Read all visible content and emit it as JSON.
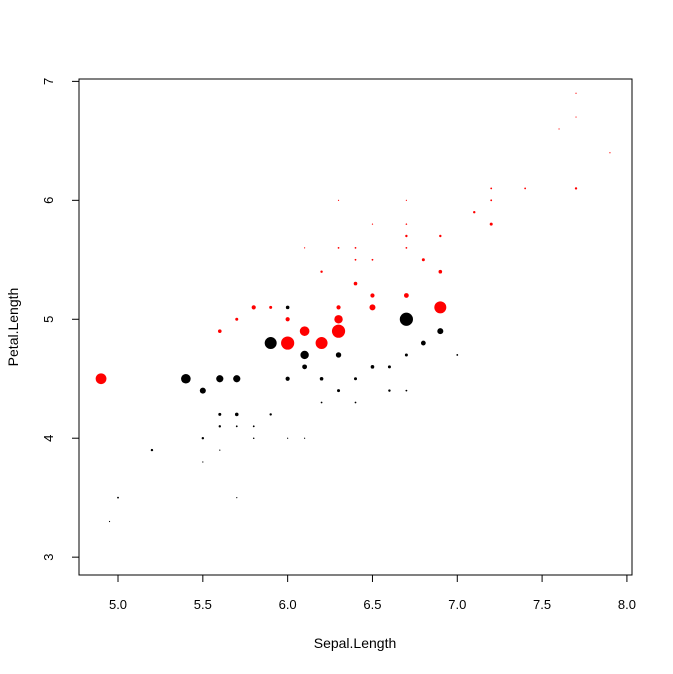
{
  "chart_data": {
    "type": "scatter",
    "title": "",
    "xlabel": "Sepal.Length",
    "ylabel": "Petal.Length",
    "xlim": [
      4.77,
      8.03
    ],
    "ylim": [
      2.85,
      7.02
    ],
    "x_ticks": [
      "5.0",
      "5.5",
      "6.0",
      "6.5",
      "7.0",
      "7.5",
      "8.0"
    ],
    "y_ticks": [
      "3",
      "4",
      "5",
      "6",
      "7"
    ],
    "grid": false,
    "legend": "none",
    "colors": {
      "black_series": "#000000",
      "red_series": "#ff0000"
    },
    "series": [
      {
        "color": "#000000",
        "points": [
          {
            "x": 5.4,
            "y": 4.5,
            "size": 1.6
          },
          {
            "x": 5.5,
            "y": 4.4,
            "size": 1.0
          },
          {
            "x": 5.6,
            "y": 4.5,
            "size": 1.2
          },
          {
            "x": 5.7,
            "y": 4.5,
            "size": 1.2
          },
          {
            "x": 5.6,
            "y": 4.2,
            "size": 0.5
          },
          {
            "x": 5.7,
            "y": 4.2,
            "size": 0.6
          },
          {
            "x": 5.5,
            "y": 4.0,
            "size": 0.4
          },
          {
            "x": 5.6,
            "y": 4.1,
            "size": 0.4
          },
          {
            "x": 5.7,
            "y": 4.1,
            "size": 0.3
          },
          {
            "x": 5.8,
            "y": 4.1,
            "size": 0.3
          },
          {
            "x": 5.9,
            "y": 4.2,
            "size": 0.4
          },
          {
            "x": 5.2,
            "y": 3.9,
            "size": 0.4
          },
          {
            "x": 5.6,
            "y": 3.9,
            "size": 0.2
          },
          {
            "x": 5.5,
            "y": 3.8,
            "size": 0.2
          },
          {
            "x": 5.8,
            "y": 4.0,
            "size": 0.25
          },
          {
            "x": 5.0,
            "y": 3.5,
            "size": 0.3
          },
          {
            "x": 5.7,
            "y": 3.5,
            "size": 0.2
          },
          {
            "x": 4.95,
            "y": 3.3,
            "size": 0.2
          },
          {
            "x": 6.0,
            "y": 4.0,
            "size": 0.2
          },
          {
            "x": 6.1,
            "y": 4.0,
            "size": 0.2
          },
          {
            "x": 5.9,
            "y": 4.8,
            "size": 2.0
          },
          {
            "x": 6.0,
            "y": 4.5,
            "size": 0.7
          },
          {
            "x": 6.1,
            "y": 4.7,
            "size": 1.4
          },
          {
            "x": 6.1,
            "y": 4.6,
            "size": 0.8
          },
          {
            "x": 6.2,
            "y": 4.5,
            "size": 0.6
          },
          {
            "x": 6.2,
            "y": 4.3,
            "size": 0.3
          },
          {
            "x": 6.3,
            "y": 4.9,
            "size": 2.0
          },
          {
            "x": 6.3,
            "y": 4.7,
            "size": 0.9
          },
          {
            "x": 6.3,
            "y": 4.4,
            "size": 0.5
          },
          {
            "x": 6.4,
            "y": 4.5,
            "size": 0.5
          },
          {
            "x": 6.4,
            "y": 4.3,
            "size": 0.3
          },
          {
            "x": 6.5,
            "y": 4.6,
            "size": 0.6
          },
          {
            "x": 6.6,
            "y": 4.6,
            "size": 0.5
          },
          {
            "x": 6.6,
            "y": 4.4,
            "size": 0.4
          },
          {
            "x": 6.7,
            "y": 5.0,
            "size": 2.2
          },
          {
            "x": 6.7,
            "y": 4.7,
            "size": 0.5
          },
          {
            "x": 6.7,
            "y": 4.4,
            "size": 0.3
          },
          {
            "x": 6.8,
            "y": 4.8,
            "size": 0.8
          },
          {
            "x": 6.9,
            "y": 4.9,
            "size": 1.0
          },
          {
            "x": 7.0,
            "y": 4.7,
            "size": 0.3
          },
          {
            "x": 6.0,
            "y": 5.1,
            "size": 0.6
          }
        ]
      },
      {
        "color": "#ff0000",
        "points": [
          {
            "x": 4.9,
            "y": 4.5,
            "size": 1.8
          },
          {
            "x": 5.6,
            "y": 4.9,
            "size": 0.6
          },
          {
            "x": 5.7,
            "y": 5.0,
            "size": 0.5
          },
          {
            "x": 5.8,
            "y": 5.1,
            "size": 0.7
          },
          {
            "x": 5.9,
            "y": 5.1,
            "size": 0.5
          },
          {
            "x": 6.0,
            "y": 4.8,
            "size": 2.2
          },
          {
            "x": 6.0,
            "y": 5.0,
            "size": 0.7
          },
          {
            "x": 6.1,
            "y": 4.9,
            "size": 1.6
          },
          {
            "x": 6.2,
            "y": 4.8,
            "size": 2.0
          },
          {
            "x": 6.3,
            "y": 4.9,
            "size": 2.2
          },
          {
            "x": 6.3,
            "y": 5.0,
            "size": 1.4
          },
          {
            "x": 6.3,
            "y": 5.1,
            "size": 0.7
          },
          {
            "x": 6.4,
            "y": 5.3,
            "size": 0.6
          },
          {
            "x": 6.5,
            "y": 5.1,
            "size": 1.0
          },
          {
            "x": 6.5,
            "y": 5.2,
            "size": 0.7
          },
          {
            "x": 6.7,
            "y": 5.2,
            "size": 0.8
          },
          {
            "x": 6.9,
            "y": 5.1,
            "size": 2.0
          },
          {
            "x": 6.9,
            "y": 5.4,
            "size": 0.6
          },
          {
            "x": 6.8,
            "y": 5.5,
            "size": 0.5
          },
          {
            "x": 6.7,
            "y": 5.6,
            "size": 0.3
          },
          {
            "x": 6.7,
            "y": 5.7,
            "size": 0.4
          },
          {
            "x": 6.9,
            "y": 5.7,
            "size": 0.4
          },
          {
            "x": 6.2,
            "y": 5.4,
            "size": 0.4
          },
          {
            "x": 6.3,
            "y": 5.6,
            "size": 0.3
          },
          {
            "x": 6.4,
            "y": 5.5,
            "size": 0.3
          },
          {
            "x": 6.5,
            "y": 5.5,
            "size": 0.3
          },
          {
            "x": 6.4,
            "y": 5.6,
            "size": 0.3
          },
          {
            "x": 6.1,
            "y": 5.6,
            "size": 0.2
          },
          {
            "x": 6.5,
            "y": 5.8,
            "size": 0.2
          },
          {
            "x": 6.7,
            "y": 5.8,
            "size": 0.25
          },
          {
            "x": 6.3,
            "y": 6.0,
            "size": 0.2
          },
          {
            "x": 7.2,
            "y": 5.8,
            "size": 0.5
          },
          {
            "x": 7.1,
            "y": 5.9,
            "size": 0.4
          },
          {
            "x": 7.2,
            "y": 6.0,
            "size": 0.3
          },
          {
            "x": 7.2,
            "y": 6.1,
            "size": 0.3
          },
          {
            "x": 7.4,
            "y": 6.1,
            "size": 0.3
          },
          {
            "x": 7.7,
            "y": 6.1,
            "size": 0.4
          },
          {
            "x": 7.6,
            "y": 6.6,
            "size": 0.2
          },
          {
            "x": 7.7,
            "y": 6.7,
            "size": 0.2
          },
          {
            "x": 7.7,
            "y": 6.9,
            "size": 0.2
          },
          {
            "x": 7.9,
            "y": 6.4,
            "size": 0.2
          },
          {
            "x": 6.7,
            "y": 6.0,
            "size": 0.15
          }
        ]
      }
    ]
  }
}
